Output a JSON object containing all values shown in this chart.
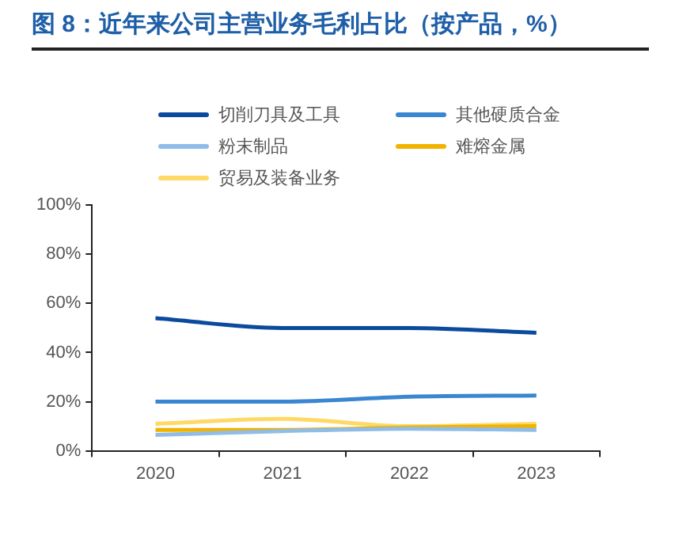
{
  "chart_data": {
    "type": "line",
    "title": "图 8：近年来公司主营业务毛利占比（按产品，%）",
    "categories": [
      "2020",
      "2021",
      "2022",
      "2023"
    ],
    "series": [
      {
        "name": "切削刀具及工具",
        "color": "#0b4a9c",
        "values": [
          54,
          50,
          50,
          48
        ]
      },
      {
        "name": "其他硬质合金",
        "color": "#3a86d0",
        "values": [
          20,
          20,
          22,
          22.5
        ]
      },
      {
        "name": "粉末制品",
        "color": "#8fbde8",
        "values": [
          6.5,
          8,
          9,
          8.5
        ]
      },
      {
        "name": "难熔金属",
        "color": "#f2b200",
        "values": [
          8.5,
          8.5,
          9.5,
          10
        ]
      },
      {
        "name": "贸易及装备业务",
        "color": "#ffd966",
        "values": [
          11,
          13,
          10,
          11
        ]
      }
    ],
    "ylim": [
      0,
      100
    ],
    "yticks": [
      {
        "value": 0,
        "label": "0%"
      },
      {
        "value": 20,
        "label": "20%"
      },
      {
        "value": 40,
        "label": "40%"
      },
      {
        "value": 60,
        "label": "60%"
      },
      {
        "value": 80,
        "label": "80%"
      },
      {
        "value": 100,
        "label": "100%"
      }
    ],
    "grid": false,
    "legend": "top",
    "marker": "none",
    "line_style": "solid"
  }
}
